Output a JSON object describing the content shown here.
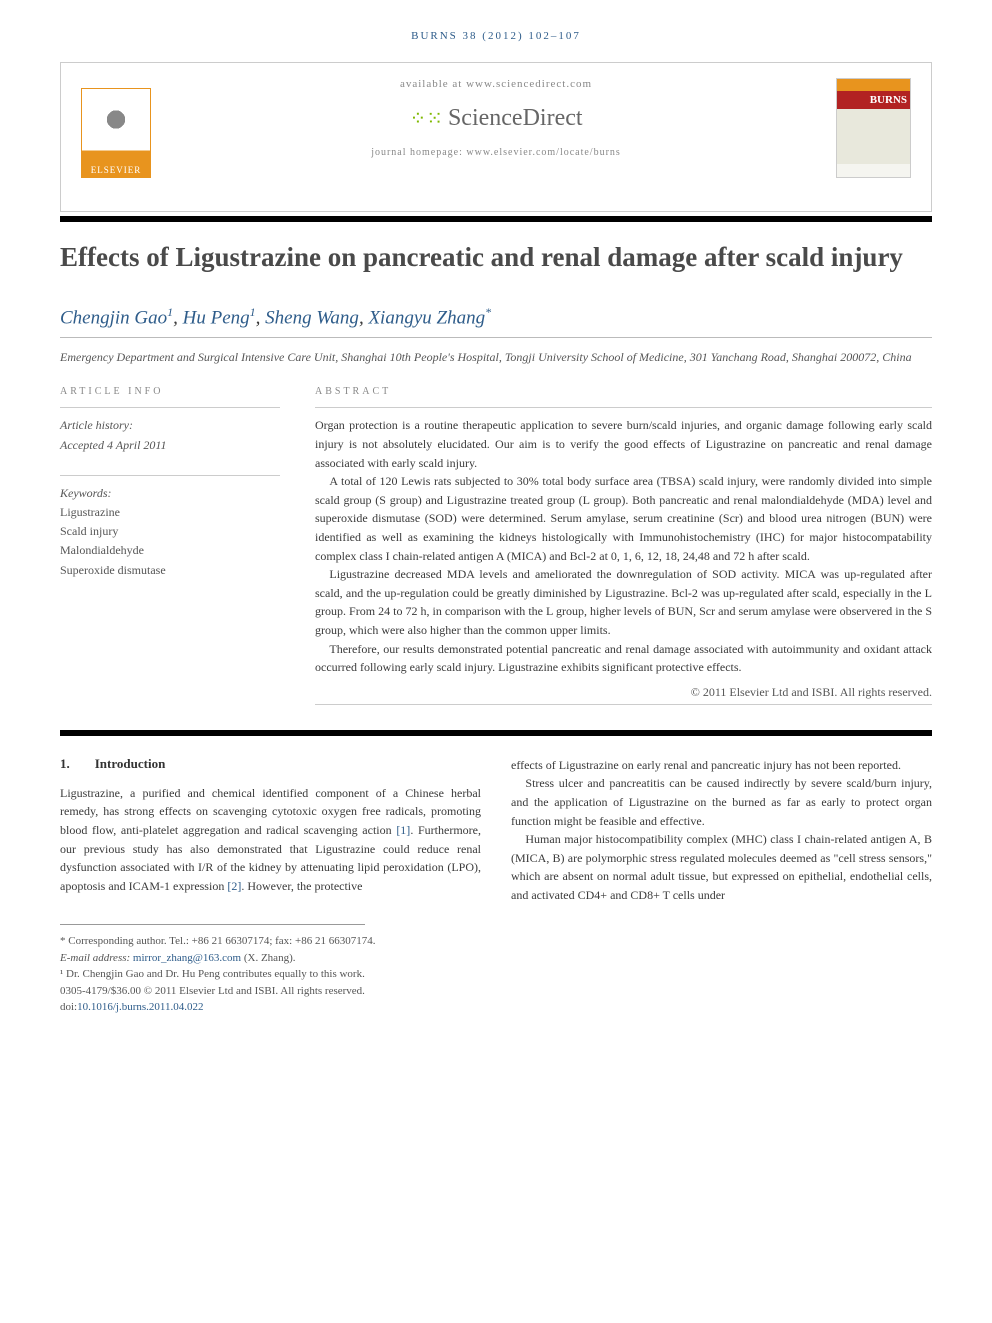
{
  "citation": "BURNS 38 (2012) 102–107",
  "header": {
    "availability": "available at www.sciencedirect.com",
    "brand": "ScienceDirect",
    "homepage_label": "journal homepage: www.elsevier.com/locate/burns",
    "publisher": "ELSEVIER",
    "journal_cover": "BURNS"
  },
  "title": "Effects of Ligustrazine on pancreatic and renal damage after scald injury",
  "authors": [
    {
      "name": "Chengjin Gao",
      "sup": "1"
    },
    {
      "name": "Hu Peng",
      "sup": "1"
    },
    {
      "name": "Sheng Wang",
      "sup": ""
    },
    {
      "name": "Xiangyu Zhang",
      "sup": "*"
    }
  ],
  "affiliation": "Emergency Department and Surgical Intensive Care Unit, Shanghai 10th People's Hospital, Tongji University School of Medicine, 301 Yanchang Road, Shanghai 200072, China",
  "article_info": {
    "label": "ARTICLE INFO",
    "history_label": "Article history:",
    "accepted": "Accepted 4 April 2011"
  },
  "keywords": {
    "label": "Keywords:",
    "items": [
      "Ligustrazine",
      "Scald injury",
      "Malondialdehyde",
      "Superoxide dismutase"
    ]
  },
  "abstract": {
    "label": "ABSTRACT",
    "paragraphs": [
      "Organ protection is a routine therapeutic application to severe burn/scald injuries, and organic damage following early scald injury is not absolutely elucidated. Our aim is to verify the good effects of Ligustrazine on pancreatic and renal damage associated with early scald injury.",
      "A total of 120 Lewis rats subjected to 30% total body surface area (TBSA) scald injury, were randomly divided into simple scald group (S group) and Ligustrazine treated group (L group). Both pancreatic and renal malondialdehyde (MDA) level and superoxide dismutase (SOD) were determined. Serum amylase, serum creatinine (Scr) and blood urea nitrogen (BUN) were identified as well as examining the kidneys histologically with Immunohistochemistry (IHC) for major histocompatability complex class I chain-related antigen A (MICA) and Bcl-2 at 0, 1, 6, 12, 18, 24,48 and 72 h after scald.",
      "Ligustrazine decreased MDA levels and ameliorated the downregulation of SOD activity. MICA was up-regulated after scald, and the up-regulation could be greatly diminished by Ligustrazine. Bcl-2 was up-regulated after scald, especially in the L group. From 24 to 72 h, in comparison with the L group, higher levels of BUN, Scr and serum amylase were observered in the S group, which were also higher than the common upper limits.",
      "Therefore, our results demonstrated potential pancreatic and renal damage associated with autoimmunity and oxidant attack occurred following early scald injury. Ligustrazine exhibits significant protective effects."
    ],
    "copyright": "© 2011 Elsevier Ltd and ISBI. All rights reserved."
  },
  "introduction": {
    "number": "1.",
    "heading": "Introduction",
    "col1": "Ligustrazine, a purified and chemical identified component of a Chinese herbal remedy, has strong effects on scavenging cytotoxic oxygen free radicals, promoting blood flow, anti-platelet aggregation and radical scavenging action [1]. Furthermore, our previous study has also demonstrated that Ligustrazine could reduce renal dysfunction associated with I/R of the kidney by attenuating lipid peroxidation (LPO), apoptosis and ICAM-1 expression [2]. However, the protective",
    "col2_p1": "effects of Ligustrazine on early renal and pancreatic injury has not been reported.",
    "col2_p2": "Stress ulcer and pancreatitis can be caused indirectly by severe scald/burn injury, and the application of Ligustrazine on the burned as far as early to protect organ function might be feasible and effective.",
    "col2_p3": "Human major histocompatibility complex (MHC) class I chain-related antigen A, B (MICA, B) are polymorphic stress regulated molecules deemed as \"cell stress sensors,\" which are absent on normal adult tissue, but expressed on epithelial, endothelial cells, and activated CD4+ and CD8+ T cells under"
  },
  "footnotes": {
    "corresponding": "* Corresponding author. Tel.: +86 21 66307174; fax: +86 21 66307174.",
    "email_label": "E-mail address:",
    "email": "mirror_zhang@163.com",
    "email_for": "(X. Zhang).",
    "note1": "¹ Dr. Chengjin Gao and Dr. Hu Peng contributes equally to this work.",
    "issn": "0305-4179/$36.00 © 2011 Elsevier Ltd and ISBI. All rights reserved.",
    "doi_label": "doi:",
    "doi": "10.1016/j.burns.2011.04.022"
  },
  "colors": {
    "link": "#2e5c8a",
    "orange": "#e8941e",
    "red": "#b22222",
    "text": "#3a3a3a",
    "muted": "#888888"
  }
}
